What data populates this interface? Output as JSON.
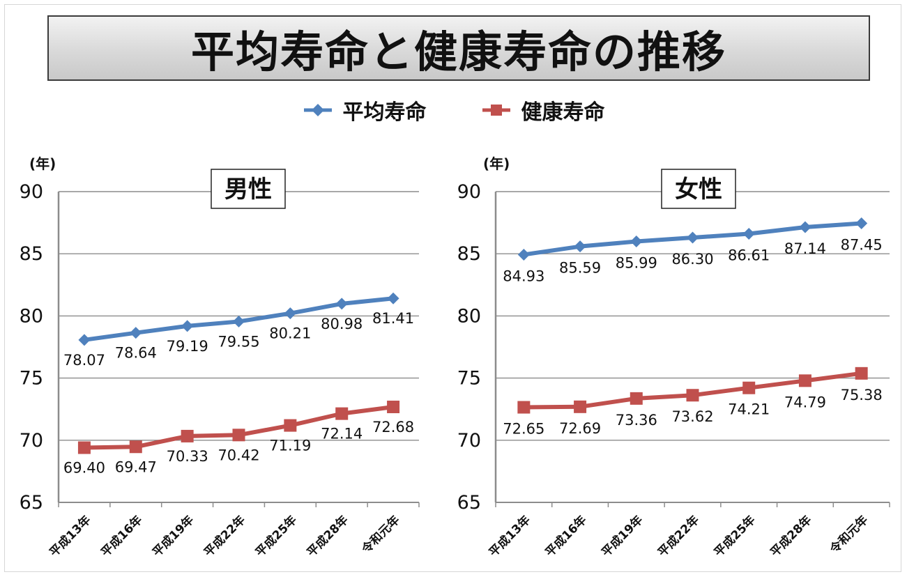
{
  "title": "平均寿命と健康寿命の推移",
  "legend": {
    "series1": "平均寿命",
    "series2": "健康寿命"
  },
  "colors": {
    "series1": "#4F81BD",
    "series2": "#C0504D"
  },
  "chart_data": [
    {
      "type": "line",
      "title": "男性",
      "ylabel": "(年)",
      "ylim": [
        65,
        90
      ],
      "yticks": [
        65,
        70,
        75,
        80,
        85,
        90
      ],
      "grid": true,
      "categories": [
        "平成13年",
        "平成16年",
        "平成19年",
        "平成22年",
        "平成25年",
        "平成28年",
        "令和元年"
      ],
      "series": [
        {
          "name": "平均寿命",
          "values": [
            78.07,
            78.64,
            79.19,
            79.55,
            80.21,
            80.98,
            81.41
          ],
          "labels": [
            "78.07",
            "78.64",
            "79.19",
            "79.55",
            "80.21",
            "80.98",
            "81.41"
          ]
        },
        {
          "name": "健康寿命",
          "values": [
            69.4,
            69.47,
            70.33,
            70.42,
            71.19,
            72.14,
            72.68
          ],
          "labels": [
            "69.40",
            "69.47",
            "70.33",
            "70.42",
            "71.19",
            "72.14",
            "72.68"
          ]
        }
      ]
    },
    {
      "type": "line",
      "title": "女性",
      "ylabel": "(年)",
      "ylim": [
        65,
        90
      ],
      "yticks": [
        65,
        70,
        75,
        80,
        85,
        90
      ],
      "grid": true,
      "categories": [
        "平成13年",
        "平成16年",
        "平成19年",
        "平成22年",
        "平成25年",
        "平成28年",
        "令和元年"
      ],
      "series": [
        {
          "name": "平均寿命",
          "values": [
            84.93,
            85.59,
            85.99,
            86.3,
            86.61,
            87.14,
            87.45
          ],
          "labels": [
            "84.93",
            "85.59",
            "85.99",
            "86.30",
            "86.61",
            "87.14",
            "87.45"
          ]
        },
        {
          "name": "健康寿命",
          "values": [
            72.65,
            72.69,
            73.36,
            73.62,
            74.21,
            74.79,
            75.38
          ],
          "labels": [
            "72.65",
            "72.69",
            "73.36",
            "73.62",
            "74.21",
            "74.79",
            "75.38"
          ]
        }
      ]
    }
  ]
}
